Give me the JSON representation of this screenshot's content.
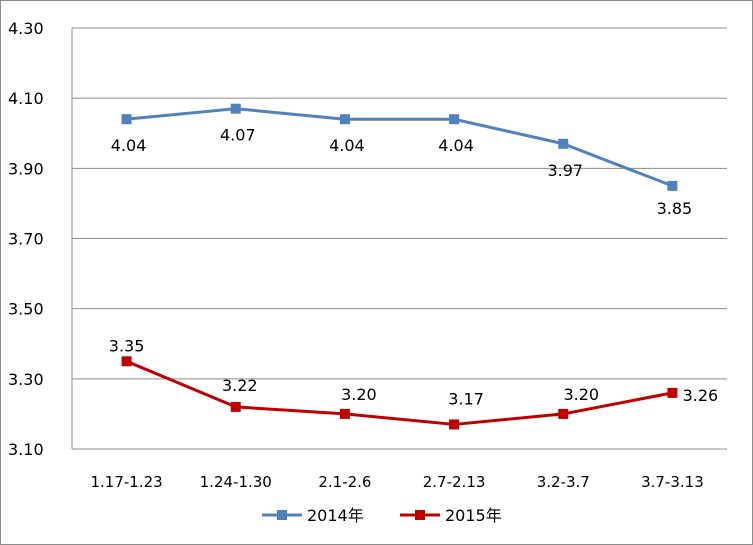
{
  "chart_data": {
    "type": "line",
    "categories": [
      "1.17-1.23",
      "1.24-1.30",
      "2.1-2.6",
      "2.7-2.13",
      "3.2-3.7",
      "3.7-3.13"
    ],
    "series": [
      {
        "name": "2014年",
        "values": [
          4.04,
          4.07,
          4.04,
          4.04,
          3.97,
          3.85
        ],
        "labels": [
          "4.04",
          "4.07",
          "4.04",
          "4.04",
          "3.97",
          "3.85"
        ],
        "color": "#4f81bd"
      },
      {
        "name": "2015年",
        "values": [
          3.35,
          3.22,
          3.2,
          3.17,
          3.2,
          3.26
        ],
        "labels": [
          "3.35",
          "3.22",
          "3.20",
          "3.17",
          "3.20",
          "3.26"
        ],
        "color": "#c00000"
      }
    ],
    "yticks": [
      "3.10",
      "3.30",
      "3.50",
      "3.70",
      "3.90",
      "4.10",
      "4.30"
    ],
    "ylim": [
      3.1,
      4.3
    ],
    "grid": true,
    "legend": "bottom"
  }
}
